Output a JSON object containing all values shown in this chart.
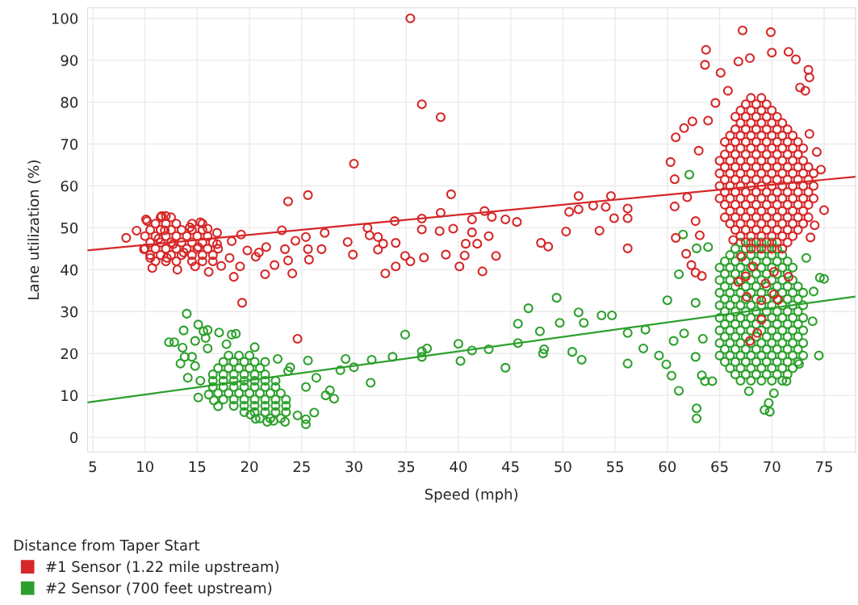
{
  "chart_data": {
    "type": "scatter",
    "xlabel": "Speed (mph)",
    "ylabel": "Lane utilization (%)",
    "legend_title": "Distance from Taper Start",
    "legend": "bottom left",
    "grid": true,
    "marker": "circle",
    "xlim": [
      4.5,
      78
    ],
    "ylim": [
      -3.5,
      102.5
    ],
    "xticks": [
      5,
      10,
      15,
      20,
      25,
      30,
      35,
      40,
      45,
      50,
      55,
      60,
      65,
      70,
      75
    ],
    "yticks": [
      0,
      10,
      20,
      30,
      40,
      50,
      60,
      70,
      80,
      90,
      100
    ],
    "series": [
      {
        "name": "#1 Sensor (1.22 mile upstream)",
        "color": "#d62728",
        "x": [
          8.2,
          9.2,
          10.1,
          10.2,
          11.6,
          12.0,
          9.9,
          10.7,
          13.1,
          11.9,
          12.7,
          11.3,
          12.1,
          10.5,
          14.3,
          15.3,
          16.0,
          14.8,
          16.1,
          16.9,
          16.9,
          15.1,
          13.7,
          17.3,
          18.3,
          18.1,
          18.5,
          19.2,
          19.1,
          19.3,
          19.8,
          20.6,
          21.6,
          20.9,
          21.5,
          22.4,
          23.1,
          23.7,
          23.4,
          23.7,
          24.1,
          24.4,
          24.6,
          25.4,
          25.6,
          25.6,
          25.7,
          26.9,
          27.2,
          29.4,
          29.9,
          30.0,
          31.3,
          31.5,
          32.3,
          32.3,
          32.8,
          33.0,
          33.9,
          34.0,
          34.0,
          34.9,
          35.4,
          35.4,
          36.5,
          36.5,
          36.5,
          36.7,
          38.2,
          38.3,
          38.3,
          38.8,
          39.3,
          39.5,
          40.1,
          40.6,
          40.7,
          41.3,
          41.3,
          41.8,
          42.5,
          43.2,
          42.9,
          43.6,
          42.3,
          44.5,
          45.6,
          47.9,
          48.6,
          50.3,
          50.6,
          51.5,
          51.5,
          52.9,
          53.5,
          54.1,
          54.6,
          54.9,
          56.2,
          56.2,
          56.2,
          60.3,
          60.7,
          60.8,
          60.7,
          60.8,
          61.8,
          62.3,
          62.7,
          63.3,
          61.9,
          62.7,
          63.1,
          61.6,
          62.4,
          63.0,
          63.6,
          63.7,
          63.9,
          64.6,
          65.1,
          65.8,
          67.2,
          69.9,
          67.9,
          66.8,
          70.0,
          71.6,
          72.3,
          73.5,
          73.6,
          72.7,
          73.2,
          73.6,
          74.3,
          74.7,
          75.0,
          74.1,
          73.7,
          66.3,
          67.1,
          68.2,
          66.8,
          67.5,
          69.4,
          70.2,
          69.0,
          70.6,
          67.6,
          71.6,
          69.0,
          68.6,
          67.9,
          70.2,
          11,
          12,
          13,
          14.5,
          15.5,
          16.5,
          10.5,
          11.5,
          12.5,
          13.5,
          14.5,
          15.5,
          16.5,
          10,
          11,
          12,
          13,
          14,
          15,
          16,
          17,
          10.5,
          11.5,
          12.5,
          13.5,
          14.5,
          15.5,
          16.5,
          10,
          11,
          12,
          13,
          14,
          15,
          16,
          10.5,
          11.5,
          12.5,
          13.5,
          14.5,
          15.5,
          11,
          12,
          13,
          14.5,
          15.5,
          11.5,
          12.5,
          68,
          69,
          70,
          71,
          67.5,
          68.5,
          69.5,
          70.5,
          71.5,
          67,
          68,
          69,
          70,
          71,
          72,
          66.5,
          67.5,
          68.5,
          69.5,
          70.5,
          71.5,
          72.5,
          66,
          67,
          68,
          69,
          70,
          71,
          72,
          73,
          65.5,
          66.5,
          67.5,
          68.5,
          69.5,
          70.5,
          71.5,
          72.5,
          73.5,
          66,
          67,
          68,
          69,
          70,
          71,
          72,
          73,
          65.5,
          66.5,
          67.5,
          68.5,
          69.5,
          70.5,
          71.5,
          72.5,
          73.5,
          65,
          66,
          67,
          68,
          69,
          70,
          71,
          72,
          73,
          74,
          65.5,
          66.5,
          67.5,
          68.5,
          69.5,
          70.5,
          71.5,
          72.5,
          73.5,
          65,
          66,
          67,
          68,
          69,
          70,
          71,
          72,
          73,
          74,
          65.5,
          66.5,
          67.5,
          68.5,
          69.5,
          70.5,
          71.5,
          72.5,
          73.5,
          65,
          66,
          67,
          68,
          69,
          70,
          71,
          72,
          73,
          74,
          65.5,
          66.5,
          67.5,
          68.5,
          69.5,
          70.5,
          71.5,
          72.5,
          73.5,
          65,
          66,
          67,
          68,
          69,
          70,
          71,
          72,
          73,
          65.5,
          66.5,
          67.5,
          68.5,
          69.5,
          70.5,
          71.5,
          72.5,
          66,
          67,
          68,
          69,
          70,
          71,
          72,
          73,
          65.5,
          66.5,
          67.5,
          68.5,
          69.5,
          70.5,
          71.5,
          72.5,
          66,
          67,
          68,
          69,
          70,
          71,
          72,
          66.5,
          67.5,
          68.5,
          69.5,
          70.5,
          71.5,
          67,
          68,
          69,
          70,
          71,
          66.5,
          67.5,
          68.5,
          69.5,
          70.5,
          67,
          68,
          69,
          70,
          67.5,
          68.5,
          69.5,
          68,
          69
        ],
        "values": [
          47.6,
          49.3,
          52.0,
          51.6,
          52.8,
          52.8,
          44.9,
          40.4,
          40.0,
          49.4,
          46.1,
          47.4,
          42.8,
          42.8,
          50.1,
          51.3,
          49.8,
          40.8,
          39.5,
          48.8,
          46.1,
          45.4,
          44.1,
          40.9,
          46.8,
          42.8,
          38.3,
          48.4,
          40.8,
          32.1,
          44.6,
          43.1,
          45.4,
          44.1,
          38.9,
          41.1,
          49.4,
          56.3,
          44.9,
          42.2,
          39.1,
          46.9,
          23.5,
          47.8,
          57.8,
          44.9,
          42.4,
          44.9,
          48.8,
          46.6,
          43.6,
          65.3,
          50.0,
          48.2,
          47.8,
          44.8,
          46.2,
          39.1,
          51.6,
          46.4,
          40.8,
          43.3,
          100,
          42.0,
          79.5,
          52.2,
          49.6,
          42.9,
          49.2,
          53.6,
          76.4,
          43.6,
          58.0,
          49.8,
          40.8,
          43.4,
          46.2,
          52.0,
          48.9,
          46.2,
          54.0,
          52.6,
          48.0,
          43.3,
          39.6,
          52.0,
          51.4,
          46.4,
          45.5,
          49.1,
          53.8,
          54.4,
          57.6,
          55.3,
          49.3,
          55.0,
          57.6,
          52.3,
          54.6,
          52.3,
          45.1,
          65.7,
          61.6,
          71.6,
          55.1,
          47.6,
          43.8,
          41.1,
          39.3,
          38.5,
          57.3,
          51.6,
          48.2,
          73.8,
          75.4,
          68.4,
          88.9,
          92.5,
          75.6,
          79.8,
          87.0,
          82.7,
          97.1,
          96.7,
          90.5,
          89.7,
          91.8,
          92.0,
          90.2,
          87.7,
          85.9,
          83.5,
          82.7,
          72.4,
          68.1,
          63.9,
          54.2,
          50.6,
          47.7,
          47.1,
          43.1,
          40.8,
          37.1,
          38.4,
          36.7,
          34.1,
          32.7,
          32.8,
          33.5,
          38.3,
          28.1,
          24.9,
          23.0,
          39.5,
          42,
          42,
          42,
          42,
          42,
          42,
          43.5,
          43.5,
          43.5,
          43.5,
          43.5,
          43.5,
          43.5,
          45,
          45,
          45,
          45,
          45,
          45,
          45,
          45,
          46.5,
          46.5,
          46.5,
          46.5,
          46.5,
          46.5,
          46.5,
          48,
          48,
          48,
          48,
          48,
          48,
          48,
          49.5,
          49.5,
          49.5,
          49.5,
          49.5,
          49.5,
          51,
          51,
          51,
          51,
          51,
          52.5,
          52.5,
          45,
          45,
          45,
          45,
          46.5,
          46.5,
          46.5,
          46.5,
          46.5,
          48,
          48,
          48,
          48,
          48,
          48,
          49.5,
          49.5,
          49.5,
          49.5,
          49.5,
          49.5,
          49.5,
          51,
          51,
          51,
          51,
          51,
          51,
          51,
          51,
          52.5,
          52.5,
          52.5,
          52.5,
          52.5,
          52.5,
          52.5,
          52.5,
          52.5,
          54,
          54,
          54,
          54,
          54,
          54,
          54,
          54,
          55.5,
          55.5,
          55.5,
          55.5,
          55.5,
          55.5,
          55.5,
          55.5,
          55.5,
          57,
          57,
          57,
          57,
          57,
          57,
          57,
          57,
          57,
          57,
          58.5,
          58.5,
          58.5,
          58.5,
          58.5,
          58.5,
          58.5,
          58.5,
          58.5,
          60,
          60,
          60,
          60,
          60,
          60,
          60,
          60,
          60,
          60,
          61.5,
          61.5,
          61.5,
          61.5,
          61.5,
          61.5,
          61.5,
          61.5,
          61.5,
          63,
          63,
          63,
          63,
          63,
          63,
          63,
          63,
          63,
          63,
          64.5,
          64.5,
          64.5,
          64.5,
          64.5,
          64.5,
          64.5,
          64.5,
          64.5,
          66,
          66,
          66,
          66,
          66,
          66,
          66,
          66,
          66,
          67.5,
          67.5,
          67.5,
          67.5,
          67.5,
          67.5,
          67.5,
          67.5,
          69,
          69,
          69,
          69,
          69,
          69,
          69,
          69,
          70.5,
          70.5,
          70.5,
          70.5,
          70.5,
          70.5,
          70.5,
          70.5,
          72,
          72,
          72,
          72,
          72,
          72,
          72,
          73.5,
          73.5,
          73.5,
          73.5,
          73.5,
          73.5,
          75,
          75,
          75,
          75,
          75,
          76.5,
          76.5,
          76.5,
          76.5,
          76.5,
          78,
          78,
          78,
          78,
          79.5,
          79.5,
          79.5,
          81,
          81
        ]
      },
      {
        "name": "#2 Sensor (700 feet upstream)",
        "color": "#2ca02c",
        "x": [
          14.0,
          13.7,
          15.1,
          15.6,
          16.0,
          15.8,
          12.3,
          12.8,
          13.6,
          14.8,
          13.8,
          14.5,
          13.4,
          14.8,
          14.1,
          15.1,
          16.0,
          17.1,
          18.3,
          18.7,
          17.8,
          20.5,
          21.5,
          22.7,
          23.9,
          23.7,
          25.6,
          26.4,
          25.4,
          27.3,
          27.7,
          28.1,
          26.2,
          25.4,
          25.4,
          24.6,
          23.4,
          22.3,
          21.7,
          20.6,
          20.1,
          17.0,
          16.6,
          15.3,
          16.1,
          28.7,
          29.2,
          30.0,
          31.7,
          31.6,
          33.7,
          34.9,
          36.5,
          36.5,
          37.0,
          40.0,
          40.2,
          41.3,
          42.9,
          44.5,
          45.7,
          45.7,
          46.7,
          47.8,
          48.1,
          48.2,
          49.4,
          49.7,
          50.9,
          51.5,
          51.8,
          52.0,
          53.7,
          54.7,
          56.2,
          56.2,
          57.7,
          57.9,
          59.2,
          59.9,
          60.0,
          60.4,
          60.6,
          61.1,
          61.1,
          61.5,
          62.1,
          61.6,
          62.7,
          62.7,
          62.8,
          62.8,
          63.3,
          63.6,
          63.4,
          62.8,
          63.9,
          64.3,
          67.8,
          69.3,
          69.8,
          69.7,
          70.2,
          71.4,
          72.6,
          73.9,
          74.0,
          74.6,
          75.0,
          74.5,
          73.3,
          21,
          22,
          23,
          19.5,
          20.5,
          21.5,
          22.5,
          23.5,
          18.5,
          19.5,
          20.5,
          21.5,
          22.5,
          23.5,
          17.5,
          18.5,
          19.5,
          20.5,
          21.5,
          22.5,
          23.5,
          17,
          18,
          19,
          20,
          21,
          22,
          23,
          16.5,
          17.5,
          18.5,
          19.5,
          20.5,
          21.5,
          22.5,
          16.5,
          17.5,
          18.5,
          19.5,
          20.5,
          21.5,
          22.5,
          16.5,
          17.5,
          18.5,
          19.5,
          20.5,
          21.5,
          17,
          18,
          19,
          20,
          21,
          17.5,
          18.5,
          19.5,
          20.5,
          18,
          19,
          20,
          67,
          68,
          69,
          70,
          71,
          66.5,
          67.5,
          68.5,
          69.5,
          70.5,
          71.5,
          66,
          67,
          68,
          69,
          70,
          71,
          72,
          65.5,
          66.5,
          67.5,
          68.5,
          69.5,
          70.5,
          71.5,
          72.5,
          65,
          66,
          67,
          68,
          69,
          70,
          71,
          72,
          73,
          65.5,
          66.5,
          67.5,
          68.5,
          69.5,
          70.5,
          71.5,
          72.5,
          65,
          66,
          67,
          68,
          69,
          70,
          71,
          72,
          73,
          65.5,
          66.5,
          67.5,
          68.5,
          69.5,
          70.5,
          71.5,
          72.5,
          65,
          66,
          67,
          68,
          69,
          70,
          71,
          72,
          73,
          65.5,
          66.5,
          67.5,
          68.5,
          69.5,
          70.5,
          71.5,
          72.5,
          65,
          66,
          67,
          68,
          69,
          70,
          71,
          72,
          73,
          65.5,
          66.5,
          67.5,
          68.5,
          69.5,
          70.5,
          71.5,
          72.5,
          65,
          66,
          67,
          68,
          69,
          70,
          71,
          72,
          73,
          65.5,
          66.5,
          67.5,
          68.5,
          69.5,
          70.5,
          71.5,
          72.5,
          65,
          66,
          67,
          68,
          69,
          70,
          71,
          72,
          73,
          65.5,
          66.5,
          67.5,
          68.5,
          69.5,
          70.5,
          71.5,
          72.5,
          65,
          66,
          67,
          68,
          69,
          70,
          71,
          72,
          65.5,
          66.5,
          67.5,
          68.5,
          69.5,
          70.5,
          71.5,
          65,
          66,
          67,
          68,
          69,
          70,
          71,
          72,
          65.5,
          66.5,
          67.5,
          68.5,
          69.5,
          70.5,
          71.5,
          66,
          67,
          68,
          69,
          70,
          71,
          66.5,
          67.5,
          68.5,
          69.5,
          70.5,
          67,
          68,
          69,
          70
        ],
        "values": [
          29.5,
          25.5,
          26.9,
          25.3,
          25.6,
          23.7,
          22.7,
          22.7,
          21.4,
          23.0,
          19.2,
          19.2,
          17.6,
          17.0,
          14.2,
          9.5,
          21.2,
          25.0,
          24.5,
          24.7,
          22.2,
          21.5,
          18.0,
          18.7,
          16.7,
          15.8,
          18.3,
          14.2,
          12.0,
          10.0,
          11.2,
          9.2,
          5.9,
          4.3,
          3.1,
          5.2,
          3.7,
          3.9,
          3.7,
          4.4,
          5.4,
          7.4,
          8.8,
          13.5,
          10.2,
          16.0,
          18.7,
          16.7,
          18.5,
          13.0,
          19.2,
          24.5,
          20.5,
          19.2,
          21.2,
          22.3,
          18.2,
          20.7,
          21.0,
          16.6,
          27.1,
          22.5,
          30.8,
          25.3,
          20.0,
          21.0,
          33.3,
          27.3,
          20.4,
          29.8,
          18.5,
          27.3,
          29.1,
          29.1,
          24.9,
          17.6,
          21.2,
          25.7,
          19.5,
          17.4,
          32.7,
          14.7,
          23.0,
          11.1,
          38.9,
          48.4,
          62.7,
          24.8,
          32.1,
          19.2,
          6.9,
          4.5,
          14.8,
          13.4,
          23.5,
          45.1,
          45.4,
          13.4,
          11.0,
          6.5,
          6.1,
          8.2,
          10.5,
          13.4,
          17.5,
          27.7,
          34.8,
          38.1,
          37.8,
          19.5,
          42.8,
          4.5,
          4.5,
          4.5,
          6,
          6,
          6,
          6,
          6,
          7.5,
          7.5,
          7.5,
          7.5,
          7.5,
          7.5,
          9,
          9,
          9,
          9,
          9,
          9,
          9,
          10.5,
          10.5,
          10.5,
          10.5,
          10.5,
          10.5,
          10.5,
          12,
          12,
          12,
          12,
          12,
          12,
          12,
          13.5,
          13.5,
          13.5,
          13.5,
          13.5,
          13.5,
          13.5,
          15,
          15,
          15,
          15,
          15,
          15,
          16.5,
          16.5,
          16.5,
          16.5,
          16.5,
          18,
          18,
          18,
          18,
          19.5,
          19.5,
          19.5,
          13.5,
          13.5,
          13.5,
          13.5,
          13.5,
          15,
          15,
          15,
          15,
          15,
          15,
          16.5,
          16.5,
          16.5,
          16.5,
          16.5,
          16.5,
          16.5,
          18,
          18,
          18,
          18,
          18,
          18,
          18,
          18,
          19.5,
          19.5,
          19.5,
          19.5,
          19.5,
          19.5,
          19.5,
          19.5,
          19.5,
          21,
          21,
          21,
          21,
          21,
          21,
          21,
          21,
          22.5,
          22.5,
          22.5,
          22.5,
          22.5,
          22.5,
          22.5,
          22.5,
          22.5,
          24,
          24,
          24,
          24,
          24,
          24,
          24,
          24,
          25.5,
          25.5,
          25.5,
          25.5,
          25.5,
          25.5,
          25.5,
          25.5,
          25.5,
          27,
          27,
          27,
          27,
          27,
          27,
          27,
          27,
          28.5,
          28.5,
          28.5,
          28.5,
          28.5,
          28.5,
          28.5,
          28.5,
          28.5,
          30,
          30,
          30,
          30,
          30,
          30,
          30,
          30,
          31.5,
          31.5,
          31.5,
          31.5,
          31.5,
          31.5,
          31.5,
          31.5,
          31.5,
          33,
          33,
          33,
          33,
          33,
          33,
          33,
          33,
          34.5,
          34.5,
          34.5,
          34.5,
          34.5,
          34.5,
          34.5,
          34.5,
          34.5,
          36,
          36,
          36,
          36,
          36,
          36,
          36,
          36,
          37.5,
          37.5,
          37.5,
          37.5,
          37.5,
          37.5,
          37.5,
          37.5,
          39,
          39,
          39,
          39,
          39,
          39,
          39,
          40.5,
          40.5,
          40.5,
          40.5,
          40.5,
          40.5,
          40.5,
          40.5,
          42,
          42,
          42,
          42,
          42,
          42,
          42,
          43.5,
          43.5,
          43.5,
          43.5,
          43.5,
          43.5,
          45,
          45,
          45,
          45,
          45,
          46.5,
          46.5,
          46.5,
          46.5
        ]
      },
      {
        "type": "line",
        "marker": "none",
        "color": "#d62728",
        "x": [
          4.5,
          78
        ],
        "values": [
          44.6,
          62.2
        ]
      },
      {
        "type": "line",
        "marker": "none",
        "color": "#2ca02c",
        "x": [
          4.5,
          78
        ],
        "values": [
          8.3,
          33.6
        ]
      }
    ]
  }
}
